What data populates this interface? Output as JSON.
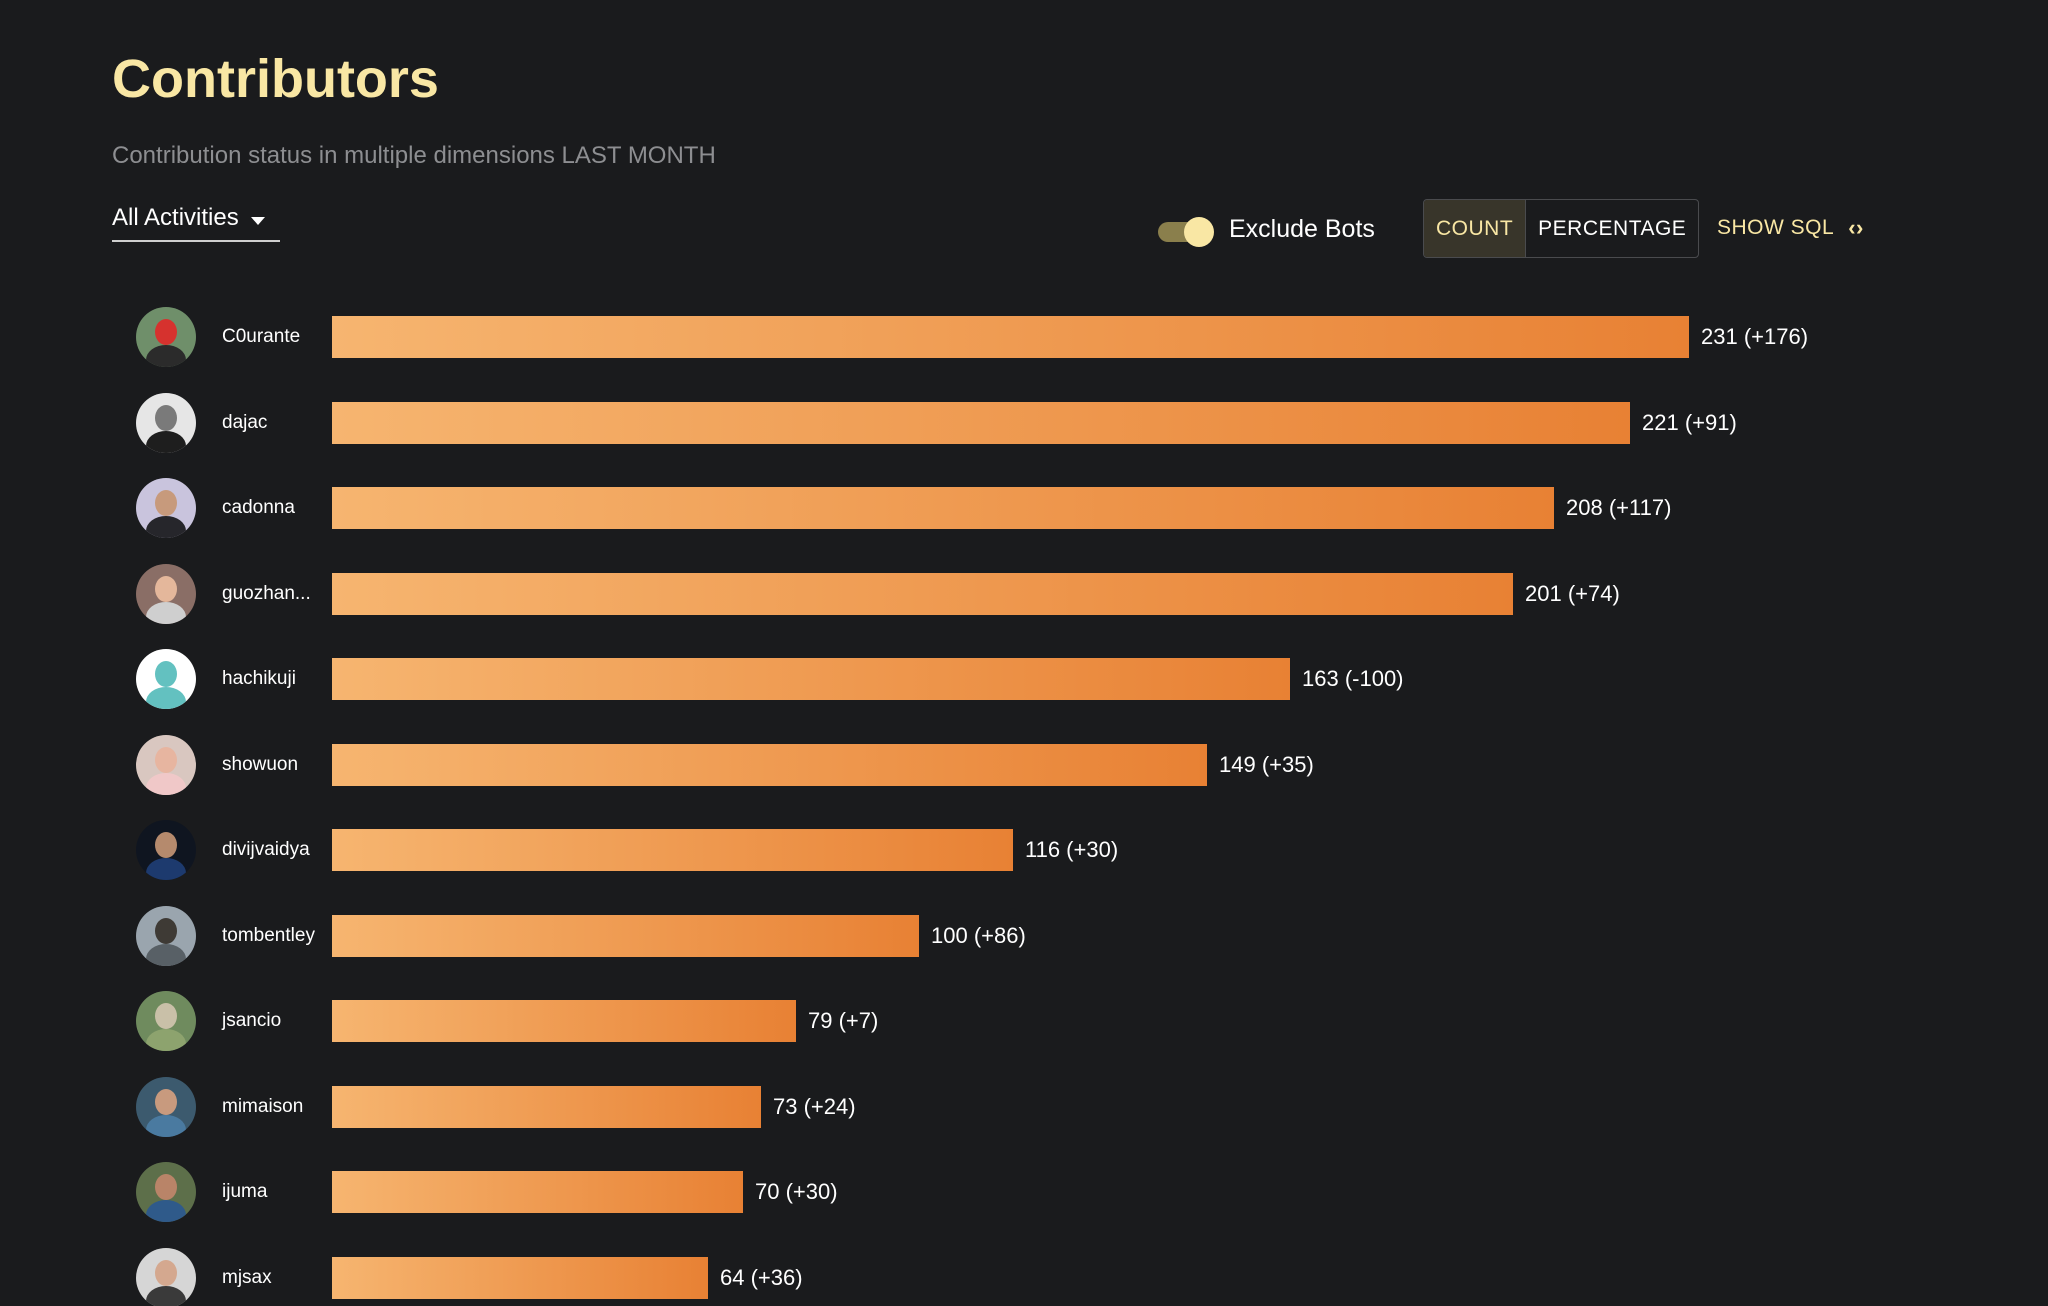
{
  "header": {
    "title": "Contributors",
    "subtitle": "Contribution status in multiple dimensions LAST MONTH"
  },
  "controls": {
    "activity_select": "All Activities",
    "exclude_bots_label": "Exclude Bots",
    "exclude_bots_on": true,
    "count_label": "COUNT",
    "percentage_label": "PERCENTAGE",
    "selected_mode": "COUNT",
    "show_sql_label": "SHOW SQL",
    "show_sql_icon": "code-icon"
  },
  "colors": {
    "accent": "#f9e7a4",
    "bar_start": "#f6b570",
    "bar_end": "#e88134",
    "background": "#1a1b1d"
  },
  "chart_data": {
    "type": "bar",
    "orientation": "horizontal",
    "categories": [
      "C0urante",
      "dajac",
      "cadonna",
      "guozhan...",
      "hachikuji",
      "showuon",
      "divijvaidya",
      "tombentley",
      "jsancio",
      "mimaison",
      "ijuma",
      "mjsax"
    ],
    "values": [
      231,
      221,
      208,
      201,
      163,
      149,
      116,
      100,
      79,
      73,
      70,
      64
    ],
    "changes": [
      "+176",
      "+91",
      "+117",
      "+74",
      "-100",
      "+35",
      "+30",
      "+86",
      "+7",
      "+24",
      "+30",
      "+36"
    ],
    "value_labels": [
      "231 (+176)",
      "221 (+91)",
      "208 (+117)",
      "201 (+74)",
      "163 (-100)",
      "149 (+35)",
      "116 (+30)",
      "100 (+86)",
      "79 (+7)",
      "73 (+24)",
      "70 (+30)",
      "64 (+36)"
    ],
    "xlim": [
      0,
      231
    ],
    "grid": false,
    "legend": "none"
  },
  "avatars": [
    {
      "bg": "#6f8f6a",
      "head": "#d6322e",
      "body": "#2b2b2b"
    },
    {
      "bg": "#e6e6e6",
      "head": "#7a7a7a",
      "body": "#1e1e1e"
    },
    {
      "bg": "#c9c4dd",
      "head": "#c79a7c",
      "body": "#26262b"
    },
    {
      "bg": "#8a6e66",
      "head": "#e4b79b",
      "body": "#cfcfcf"
    },
    {
      "bg": "#ffffff",
      "head": "#63c1c0",
      "body": "#63c1c0"
    },
    {
      "bg": "#d9c7c0",
      "head": "#e7b5a0",
      "body": "#f0c8c8"
    },
    {
      "bg": "#0f1520",
      "head": "#b58a6d",
      "body": "#1d3a6e"
    },
    {
      "bg": "#9aa5ae",
      "head": "#3e3a35",
      "body": "#586066"
    },
    {
      "bg": "#6f8b5e",
      "head": "#c9c0a8",
      "body": "#8da36e"
    },
    {
      "bg": "#3c5a6e",
      "head": "#c89a7e",
      "body": "#4a7aa0"
    },
    {
      "bg": "#5d6f4a",
      "head": "#b98468",
      "body": "#2f5a8a"
    },
    {
      "bg": "#d6d6d6",
      "head": "#d4a88f",
      "body": "#3a3a3a"
    }
  ]
}
